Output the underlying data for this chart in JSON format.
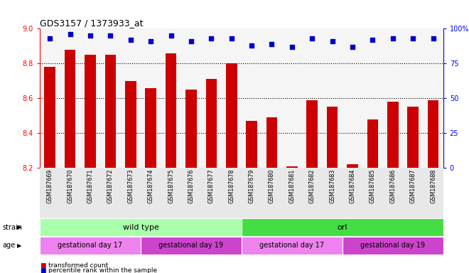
{
  "title": "GDS3157 / 1373933_at",
  "samples": [
    "GSM187669",
    "GSM187670",
    "GSM187671",
    "GSM187672",
    "GSM187673",
    "GSM187674",
    "GSM187675",
    "GSM187676",
    "GSM187677",
    "GSM187678",
    "GSM187679",
    "GSM187680",
    "GSM187681",
    "GSM187682",
    "GSM187683",
    "GSM187684",
    "GSM187685",
    "GSM187686",
    "GSM187687",
    "GSM187688"
  ],
  "bar_values": [
    8.78,
    8.88,
    8.85,
    8.85,
    8.7,
    8.66,
    8.86,
    8.65,
    8.71,
    8.8,
    8.47,
    8.49,
    8.21,
    8.59,
    8.55,
    8.22,
    8.48,
    8.58,
    8.55,
    8.59
  ],
  "percentile_values": [
    93,
    96,
    95,
    95,
    92,
    91,
    95,
    91,
    93,
    93,
    88,
    89,
    87,
    93,
    91,
    87,
    92,
    93,
    93,
    93
  ],
  "bar_color": "#cc0000",
  "percentile_color": "#0000cc",
  "ylim_left": [
    8.2,
    9.0
  ],
  "ylim_right": [
    0,
    100
  ],
  "yticks_left": [
    8.2,
    8.4,
    8.6,
    8.8,
    9.0
  ],
  "yticks_right": [
    0,
    25,
    50,
    75,
    100
  ],
  "grid_values": [
    8.4,
    8.6,
    8.8
  ],
  "strain_labels": [
    {
      "label": "wild type",
      "start": 0,
      "end": 10,
      "color": "#aaffaa"
    },
    {
      "label": "orl",
      "start": 10,
      "end": 20,
      "color": "#44dd44"
    }
  ],
  "age_labels": [
    {
      "label": "gestational day 17",
      "start": 0,
      "end": 5,
      "color": "#ee82ee"
    },
    {
      "label": "gestational day 19",
      "start": 5,
      "end": 10,
      "color": "#cc44cc"
    },
    {
      "label": "gestational day 17",
      "start": 10,
      "end": 15,
      "color": "#ee82ee"
    },
    {
      "label": "gestational day 19",
      "start": 15,
      "end": 20,
      "color": "#cc44cc"
    }
  ],
  "legend_items": [
    {
      "label": "transformed count",
      "color": "#cc0000"
    },
    {
      "label": "percentile rank within the sample",
      "color": "#0000cc"
    }
  ],
  "bg_color": "#f0f0f0"
}
